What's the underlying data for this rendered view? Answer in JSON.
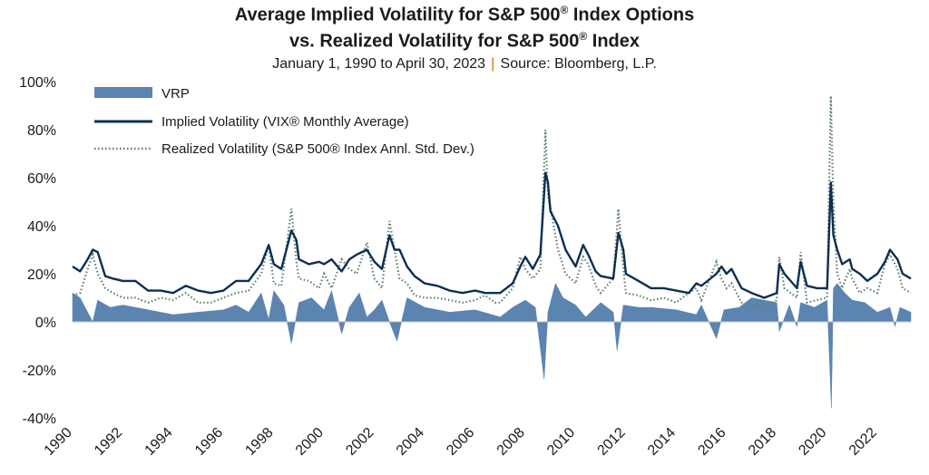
{
  "title_line1": "Average Implied Volatility for S&P 500",
  "title_line1_end": " Index Options",
  "title_line2": "vs. Realized Volatility for S&P 500",
  "title_line2_end": " Index",
  "title_reg": "®",
  "subtitle_dates": "January 1, 1990 to April 30, 2023",
  "subtitle_sep": "|",
  "subtitle_source": "Source: Bloomberg, L.P.",
  "colors": {
    "implied": "#0d2f52",
    "realized": "#5f7f6e",
    "vrp": "#5b84b1",
    "axis": "#bfbfbf"
  },
  "chart_data": {
    "type": "line",
    "y_unit": "%",
    "ylim": [
      -40,
      100
    ],
    "yticks": [
      "-40%",
      "-20%",
      "0%",
      "20%",
      "40%",
      "60%",
      "80%",
      "100%"
    ],
    "ytick_values": [
      -40,
      -20,
      0,
      20,
      40,
      60,
      80,
      100
    ],
    "xlim": [
      1990,
      2023.33
    ],
    "xticks": [
      "1990",
      "1992",
      "1994",
      "1996",
      "1998",
      "2000",
      "2002",
      "2004",
      "2006",
      "2008",
      "2010",
      "2012",
      "2014",
      "2016",
      "2018",
      "2020",
      "2022"
    ],
    "xtick_values": [
      1990,
      1992,
      1994,
      1996,
      1998,
      2000,
      2002,
      2004,
      2006,
      2008,
      2010,
      2012,
      2014,
      2016,
      2018,
      2020,
      2022
    ],
    "legend_position": "top-left",
    "series": [
      {
        "name": "VRP",
        "kind": "area",
        "x": [
          1990,
          1990.3,
          1990.6,
          1990.8,
          1991,
          1991.5,
          1992,
          1993,
          1994,
          1995,
          1996,
          1996.5,
          1997,
          1997.5,
          1997.8,
          1998,
          1998.4,
          1998.7,
          1999,
          1999.5,
          2000,
          2000.3,
          2000.7,
          2001,
          2001.4,
          2001.7,
          2002,
          2002.3,
          2002.6,
          2002.9,
          2003.3,
          2004,
          2005,
          2006,
          2007,
          2007.5,
          2008,
          2008.4,
          2008.75,
          2008.9,
          2009.2,
          2009.5,
          2010,
          2010.4,
          2011,
          2011.5,
          2011.65,
          2011.9,
          2012.5,
          2013,
          2014,
          2014.8,
          2015,
          2015.6,
          2015.9,
          2016.5,
          2017,
          2018,
          2018.1,
          2018.5,
          2018.8,
          2018.95,
          2019.5,
          2020,
          2020.17,
          2020.25,
          2020.4,
          2020.7,
          2021,
          2021.5,
          2022,
          2022.5,
          2022.7,
          2022.9,
          2023.33
        ],
        "values": [
          12,
          10,
          4,
          0,
          9,
          6,
          7,
          5,
          3,
          4,
          5,
          7,
          4,
          12,
          1,
          13,
          7,
          -9,
          8,
          10,
          5,
          13,
          -5,
          6,
          12,
          2,
          5,
          9,
          0,
          -8,
          10,
          6,
          4,
          5,
          2,
          6,
          9,
          6,
          -24,
          4,
          16,
          10,
          7,
          2,
          8,
          4,
          -12,
          7,
          6,
          6,
          5,
          3,
          7,
          -7,
          5,
          6,
          10,
          8,
          -4,
          7,
          -2,
          8,
          6,
          9,
          -36,
          14,
          16,
          12,
          9,
          8,
          4,
          6,
          -2,
          6,
          4
        ]
      },
      {
        "name": "Implied Volatility (VIX® Monthly Average)",
        "kind": "line",
        "x": [
          1990,
          1990.3,
          1990.6,
          1990.8,
          1991,
          1991.3,
          1991.6,
          1992,
          1992.5,
          1993,
          1993.5,
          1994,
          1994.5,
          1995,
          1995.5,
          1996,
          1996.5,
          1997,
          1997.5,
          1997.8,
          1998,
          1998.3,
          1998.7,
          1998.9,
          1999,
          1999.4,
          1999.8,
          2000,
          2000.3,
          2000.7,
          2001,
          2001.3,
          2001.7,
          2002,
          2002.3,
          2002.6,
          2002.8,
          2003,
          2003.3,
          2003.6,
          2004,
          2004.5,
          2005,
          2005.5,
          2006,
          2006.4,
          2006.8,
          2007,
          2007.5,
          2007.8,
          2008,
          2008.3,
          2008.6,
          2008.8,
          2008.9,
          2009,
          2009.3,
          2009.6,
          2010,
          2010.3,
          2010.5,
          2010.8,
          2011,
          2011.5,
          2011.7,
          2011.9,
          2012,
          2012.5,
          2013,
          2013.5,
          2014,
          2014.5,
          2014.8,
          2015,
          2015.6,
          2015.8,
          2016,
          2016.2,
          2016.6,
          2017,
          2017.5,
          2018,
          2018.1,
          2018.3,
          2018.8,
          2018.95,
          2019.2,
          2019.6,
          2020,
          2020.15,
          2020.25,
          2020.4,
          2020.6,
          2020.9,
          2021,
          2021.3,
          2021.6,
          2022,
          2022.3,
          2022.5,
          2022.8,
          2023,
          2023.33
        ],
        "values": [
          23,
          21,
          26,
          30,
          29,
          19,
          18,
          17,
          17,
          13,
          13,
          12,
          15,
          13,
          12,
          13,
          17,
          17,
          24,
          32,
          24,
          22,
          38,
          34,
          26,
          24,
          25,
          24,
          26,
          21,
          26,
          28,
          30,
          25,
          22,
          36,
          30,
          30,
          23,
          19,
          16,
          15,
          13,
          12,
          13,
          12,
          12,
          12,
          16,
          23,
          27,
          22,
          28,
          62,
          58,
          46,
          40,
          30,
          23,
          32,
          28,
          21,
          19,
          18,
          37,
          30,
          20,
          17,
          14,
          14,
          13,
          12,
          16,
          15,
          20,
          23,
          20,
          22,
          14,
          12,
          10,
          12,
          24,
          20,
          14,
          25,
          15,
          14,
          14,
          58,
          36,
          30,
          24,
          26,
          22,
          20,
          17,
          20,
          25,
          30,
          26,
          20,
          18
        ]
      },
      {
        "name": "Realized Volatility (S&P 500® Index Annl. Std. Dev.)",
        "kind": "dotted",
        "x": [
          1990,
          1990.3,
          1990.6,
          1990.8,
          1991,
          1991.3,
          1991.6,
          1992,
          1992.5,
          1993,
          1993.5,
          1994,
          1994.5,
          1995,
          1995.5,
          1996,
          1996.5,
          1997,
          1997.5,
          1997.8,
          1998,
          1998.3,
          1998.7,
          1998.9,
          1999,
          1999.4,
          1999.8,
          2000,
          2000.3,
          2000.7,
          2001,
          2001.3,
          2001.7,
          2002,
          2002.3,
          2002.6,
          2002.8,
          2003,
          2003.3,
          2003.6,
          2004,
          2004.5,
          2005,
          2005.5,
          2006,
          2006.4,
          2006.8,
          2007,
          2007.5,
          2007.8,
          2008,
          2008.3,
          2008.6,
          2008.8,
          2008.9,
          2009,
          2009.3,
          2009.6,
          2010,
          2010.3,
          2010.5,
          2010.8,
          2011,
          2011.5,
          2011.7,
          2011.9,
          2012,
          2012.5,
          2013,
          2013.5,
          2014,
          2014.5,
          2014.8,
          2015,
          2015.6,
          2015.8,
          2016,
          2016.2,
          2016.6,
          2017,
          2017.5,
          2018,
          2018.1,
          2018.3,
          2018.8,
          2018.95,
          2019.2,
          2019.6,
          2020,
          2020.15,
          2020.25,
          2020.4,
          2020.6,
          2020.9,
          2021,
          2021.3,
          2021.6,
          2022,
          2022.3,
          2022.5,
          2022.8,
          2023,
          2023.33
        ],
        "values": [
          11,
          12,
          22,
          28,
          20,
          14,
          12,
          10,
          10,
          8,
          10,
          9,
          12,
          8,
          8,
          10,
          12,
          13,
          20,
          32,
          16,
          15,
          47,
          25,
          18,
          17,
          14,
          20,
          14,
          26,
          22,
          20,
          33,
          18,
          14,
          42,
          30,
          18,
          16,
          11,
          10,
          10,
          9,
          8,
          9,
          11,
          8,
          8,
          14,
          27,
          22,
          18,
          22,
          80,
          52,
          48,
          30,
          20,
          16,
          27,
          24,
          15,
          12,
          18,
          47,
          22,
          12,
          11,
          9,
          10,
          8,
          12,
          14,
          9,
          25,
          18,
          14,
          16,
          8,
          7,
          6,
          9,
          27,
          14,
          10,
          29,
          8,
          9,
          10,
          94,
          50,
          20,
          14,
          22,
          18,
          12,
          14,
          12,
          24,
          28,
          22,
          14,
          12
        ]
      }
    ]
  }
}
